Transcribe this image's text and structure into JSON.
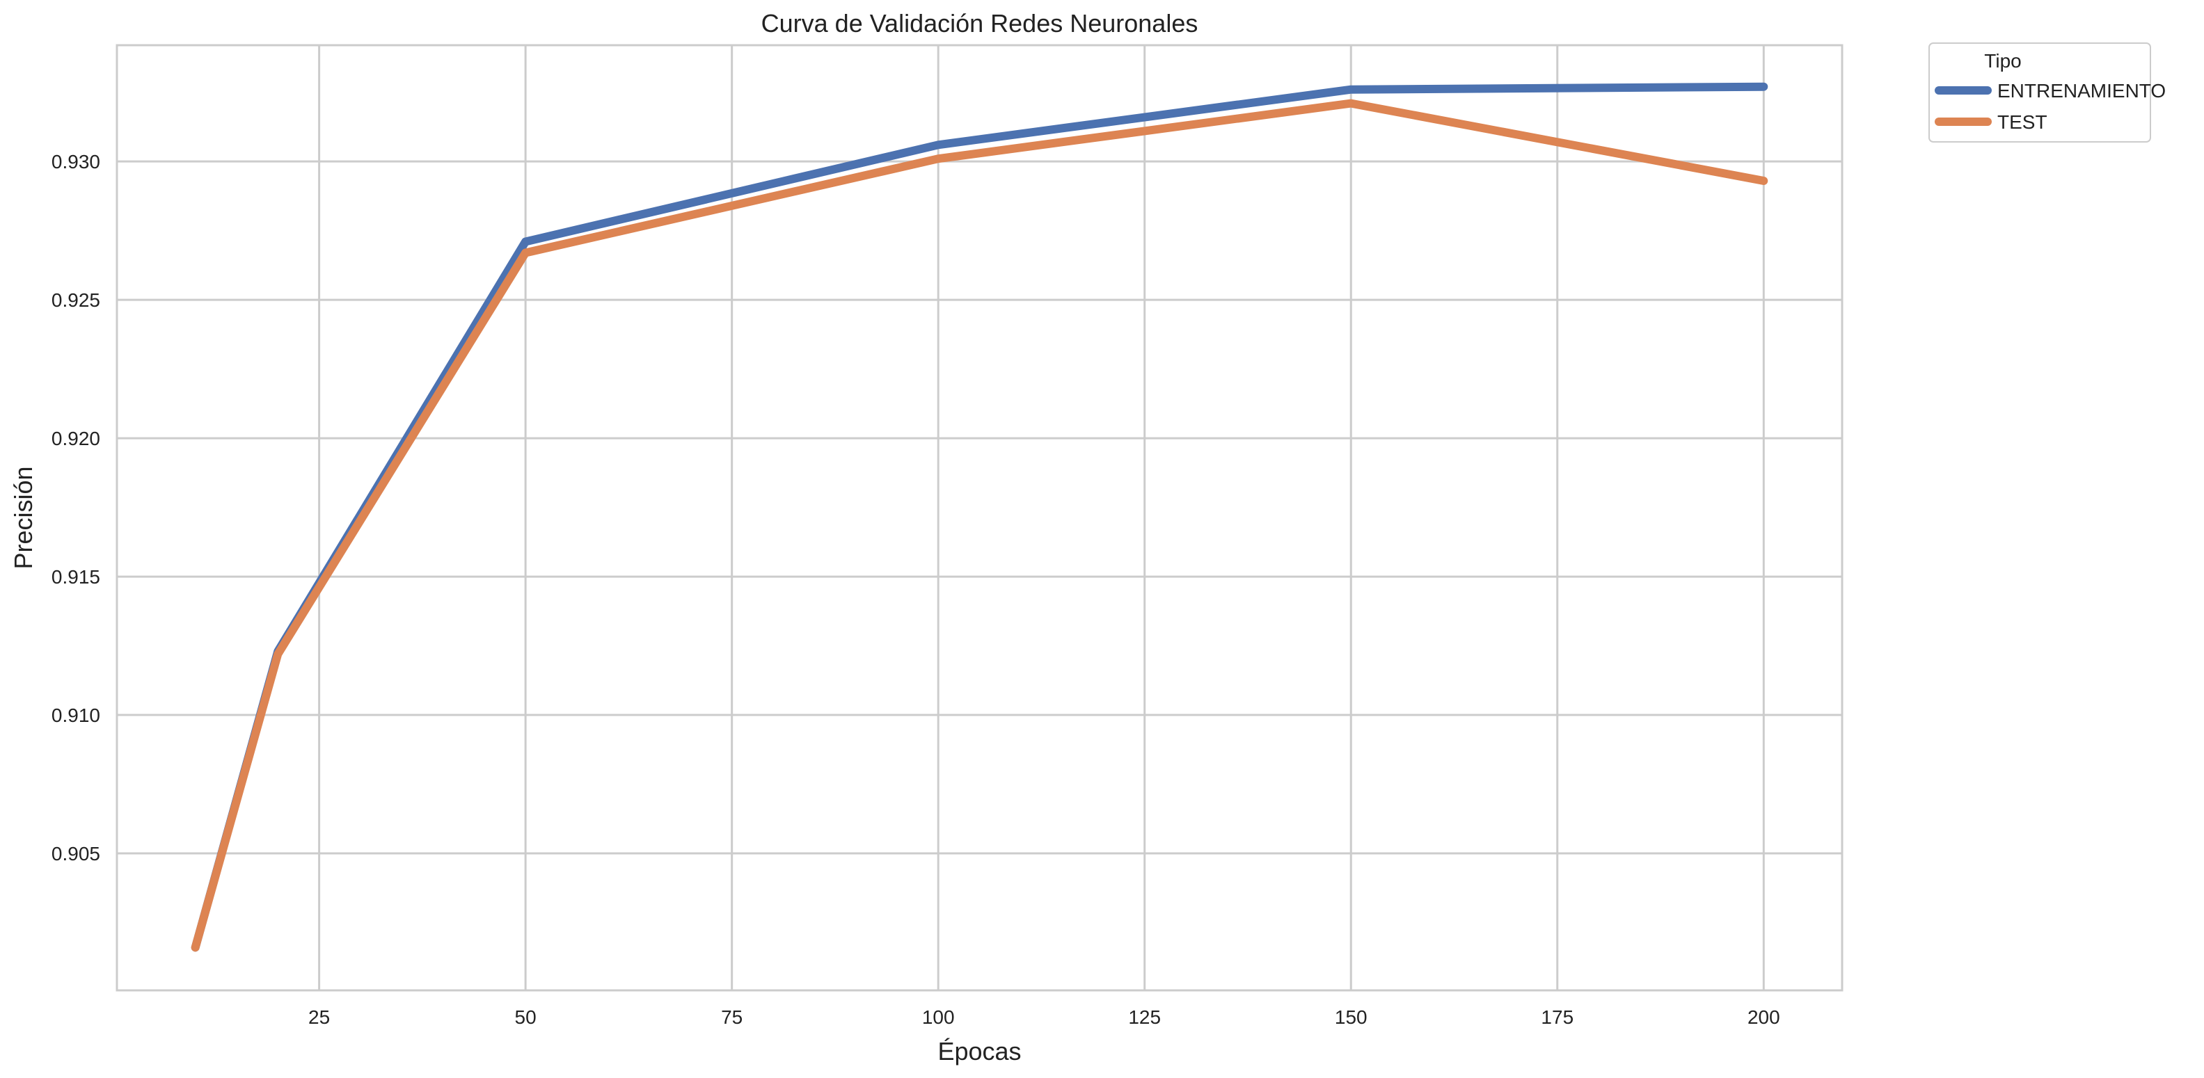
{
  "chart_data": {
    "type": "line",
    "title": "Curva de Validación Redes Neuronales",
    "xlabel": "Épocas",
    "ylabel": "Precisión",
    "x": [
      10,
      20,
      50,
      100,
      150,
      200
    ],
    "xlim": [
      0.5,
      209.5
    ],
    "ylim": [
      0.90005,
      0.9342
    ],
    "xticks": [
      25,
      50,
      75,
      100,
      125,
      150,
      175,
      200
    ],
    "yticks": [
      0.905,
      0.91,
      0.915,
      0.92,
      0.925,
      0.93
    ],
    "xtick_labels": [
      "25",
      "50",
      "75",
      "100",
      "125",
      "150",
      "175",
      "200"
    ],
    "ytick_labels": [
      "0.905",
      "0.910",
      "0.915",
      "0.920",
      "0.925",
      "0.930"
    ],
    "grid": true,
    "legend": {
      "title": "Tipo",
      "placement": "outside-top-right"
    },
    "series": [
      {
        "name": "ENTRENAMIENTO",
        "color": "#4c72b0",
        "values": [
          0.9016,
          0.9123,
          0.9271,
          0.9306,
          0.9326,
          0.9327
        ]
      },
      {
        "name": "TEST",
        "color": "#dd8452",
        "values": [
          0.9016,
          0.9122,
          0.9267,
          0.9301,
          0.9321,
          0.9293
        ]
      }
    ]
  }
}
